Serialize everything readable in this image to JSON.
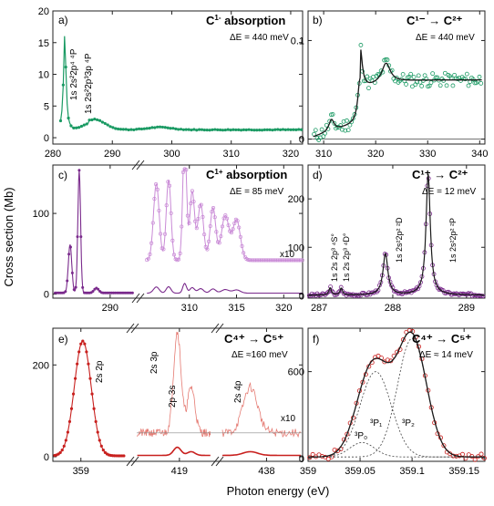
{
  "figure": {
    "ylabel": "Cross section (Mb)",
    "xlabel": "Photon energy (eV)"
  },
  "colors": {
    "green": "#1a9a63",
    "purple": "#7a2a8c",
    "purple_light": "#c98ad6",
    "red": "#c8201e",
    "red_light": "#e57a72",
    "dark": "#1a1a1a"
  },
  "panels": {
    "a": {
      "letter": "a)",
      "title_main": "C",
      "title_sup": "1-",
      "title_tail": " absorption",
      "de": "ΔE = 440 meV",
      "ann1": "1s 2s²2p⁴ ⁴P",
      "ann2": "1s 2s²2p³3p ⁴P",
      "xticks": [
        "280",
        "290",
        "300",
        "310",
        "320"
      ],
      "yticks": [
        "0",
        "5",
        "10",
        "15",
        "20"
      ]
    },
    "b": {
      "letter": "b)",
      "title": "C¹⁻ → C²⁺",
      "de": "ΔE = 440 meV",
      "xticks": [
        "310",
        "320",
        "330",
        "340"
      ],
      "yticks": [
        "0",
        "0.1"
      ]
    },
    "c": {
      "letter": "c)",
      "title_main": "C",
      "title_sup": "1+",
      "title_tail": " absorption",
      "de": "ΔE = 85 meV",
      "x10": "x10",
      "xticks": [
        "290",
        "310",
        "315",
        "320"
      ],
      "yticks": [
        "0",
        "100"
      ]
    },
    "d": {
      "letter": "d)",
      "title": "C¹⁺ → C²⁺",
      "de": "ΔE = 12 meV",
      "ann1": "1s 2s 2p³ ⁴S°",
      "ann2": "1s 2s 2p³ ⁴D°",
      "ann3": "1s 2s²2p² ²D",
      "ann4": "1s 2s²2p² ²P",
      "xticks": [
        "287",
        "288",
        "289"
      ],
      "yticks": [
        "0",
        "100",
        "200"
      ]
    },
    "e": {
      "letter": "e)",
      "title": "C⁴⁺ → C⁵⁺",
      "de": "ΔE ≈160 meV",
      "ann1": "2s 2p",
      "ann2": "2s 3p",
      "ann3": "2p 3s",
      "ann4": "2s 4p",
      "x10": "x10",
      "xticks": [
        "359",
        "419",
        "438"
      ],
      "yticks": [
        "0",
        "200"
      ]
    },
    "f": {
      "letter": "f)",
      "title": "C⁴⁺ → C⁵⁺",
      "de": "ΔE ≈ 14 meV",
      "ann_p0": "³P₀",
      "ann_p1": "³P₁",
      "ann_p2": "³P₂",
      "xticks": [
        "359",
        "359.05",
        "359.1",
        "359.15"
      ],
      "yticks": [
        "0",
        "600"
      ]
    }
  },
  "chart_data": [
    {
      "type": "scatter",
      "panel": "a",
      "x_range": [
        280,
        322
      ],
      "ylim": [
        -1,
        20
      ],
      "peaks": [
        {
          "x": 282.0,
          "y": 15.5,
          "width": 0.25
        },
        {
          "x": 287.0,
          "y": 1.6,
          "width": 1.8
        },
        {
          "x": 298.0,
          "y": 0.4,
          "width": 2.0
        }
      ],
      "baseline": 1.2
    },
    {
      "type": "line",
      "panel": "b",
      "x_range": [
        307,
        341
      ],
      "ylim": [
        -0.005,
        0.13
      ],
      "peaks": [
        {
          "x": 311.5,
          "y": 0.012,
          "width": 0.6
        },
        {
          "x": 317.0,
          "y": 0.045,
          "width": 0.5
        },
        {
          "x": 322.0,
          "y": 0.02,
          "width": 1.0
        }
      ],
      "edge": {
        "x0": 317.0,
        "plateau": 0.06
      }
    },
    {
      "type": "scatter",
      "panel": "c",
      "x_range_left": [
        285,
        292
      ],
      "x_range_right": [
        305,
        322
      ],
      "ylim": [
        -5,
        160
      ],
      "peaks_left": [
        {
          "x": 286.5,
          "y": 60,
          "width": 0.15
        },
        {
          "x": 287.3,
          "y": 152,
          "width": 0.12
        },
        {
          "x": 288.8,
          "y": 6,
          "width": 0.2
        }
      ],
      "peaks_right_x10": [
        {
          "x": 306.5,
          "y": 95,
          "width": 0.3
        },
        {
          "x": 307.8,
          "y": 100,
          "width": 0.25
        },
        {
          "x": 309.5,
          "y": 150,
          "width": 0.2
        },
        {
          "x": 310.3,
          "y": 85,
          "width": 0.25
        },
        {
          "x": 311.2,
          "y": 70,
          "width": 0.3
        },
        {
          "x": 312.5,
          "y": 65,
          "width": 0.3
        },
        {
          "x": 313.8,
          "y": 55,
          "width": 0.4
        },
        {
          "x": 315.0,
          "y": 50,
          "width": 0.4
        }
      ]
    },
    {
      "type": "line",
      "panel": "d",
      "x_range": [
        286.85,
        289.25
      ],
      "ylim": [
        -5,
        270
      ],
      "peaks": [
        {
          "x": 287.15,
          "y": 15,
          "width": 0.02
        },
        {
          "x": 287.3,
          "y": 14,
          "width": 0.02
        },
        {
          "x": 287.9,
          "y": 85,
          "width": 0.04
        },
        {
          "x": 288.48,
          "y": 250,
          "width": 0.035
        }
      ]
    },
    {
      "type": "scatter",
      "panel": "e",
      "segments": [
        [
          357.5,
          361.5
        ],
        [
          415,
          422
        ],
        [
          435.5,
          440
        ]
      ],
      "ylim": [
        -10,
        280
      ],
      "peaks": [
        {
          "x": 359.1,
          "y": 250,
          "width": 0.45
        }
      ],
      "peaks_x10": [
        {
          "x": 418.8,
          "y": 220,
          "width": 0.35
        },
        {
          "x": 420.1,
          "y": 100,
          "width": 0.35
        },
        {
          "x": 437.1,
          "y": 100,
          "width": 0.4
        }
      ]
    },
    {
      "type": "line",
      "panel": "f",
      "x_range": [
        359.0,
        359.17
      ],
      "ylim": [
        -20,
        900
      ],
      "components": [
        {
          "x": 359.052,
          "y": 100,
          "width": 0.012
        },
        {
          "x": 359.065,
          "y": 590,
          "width": 0.015
        },
        {
          "x": 359.1,
          "y": 820,
          "width": 0.014
        }
      ]
    }
  ]
}
